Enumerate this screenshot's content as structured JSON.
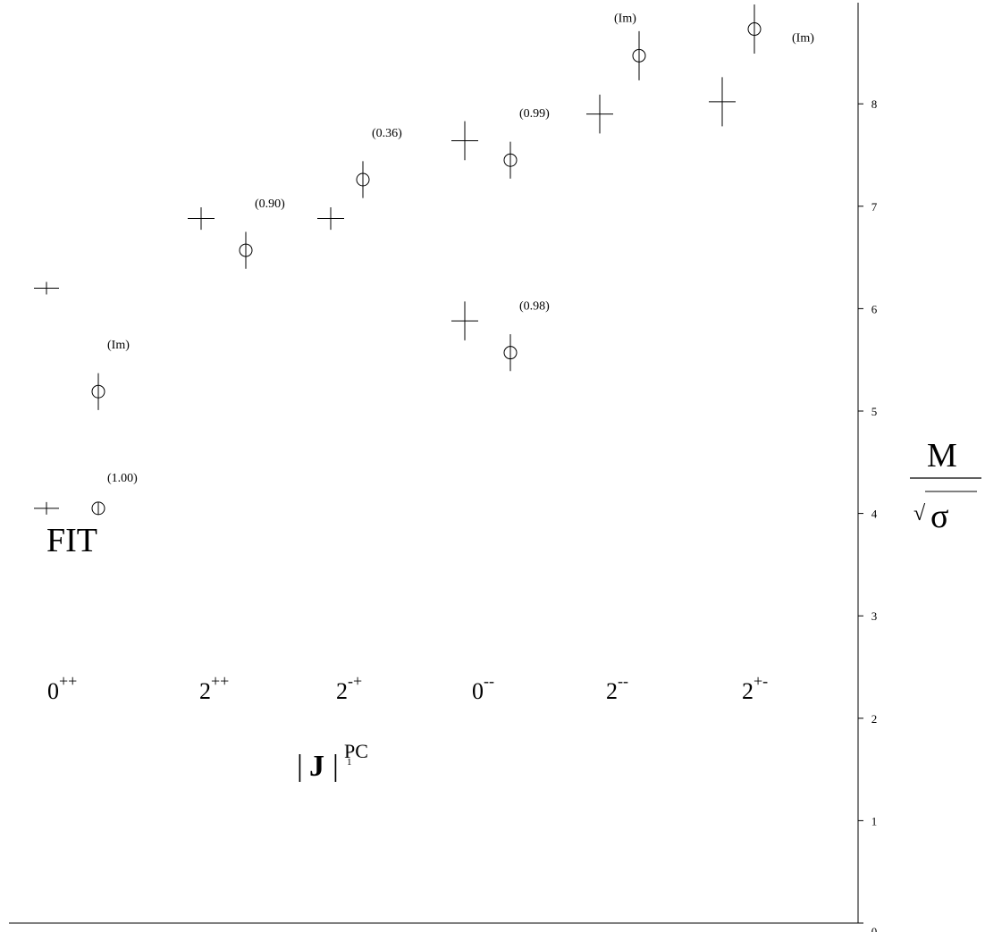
{
  "chart_data": {
    "type": "scatter",
    "title": "",
    "fit_label": "FIT",
    "xlabel": {
      "prefix": "|",
      "main": "J",
      "mid": "|",
      "sup": "PC",
      "sub": "1"
    },
    "ylabel": {
      "numerator": "M",
      "radical": "√",
      "denominator": "σ"
    },
    "ylim": [
      0,
      9
    ],
    "yticks": [
      0,
      1,
      2,
      3,
      4,
      5,
      6,
      7,
      8
    ],
    "grid": false,
    "categories": [
      {
        "base": "0",
        "sup": "++"
      },
      {
        "base": "2",
        "sup": "++"
      },
      {
        "base": "2",
        "sup": "-+"
      },
      {
        "base": "0",
        "sup": "--"
      },
      {
        "base": "2",
        "sup": "--"
      },
      {
        "base": "2",
        "sup": "+-"
      }
    ],
    "series": [
      {
        "marker": "cross",
        "points": [
          {
            "category": 0,
            "y": 4.05,
            "err": 0.02
          },
          {
            "category": 0,
            "y": 6.2,
            "err": 0.04
          },
          {
            "category": 1,
            "y": 6.88,
            "err": 0.11
          },
          {
            "category": 2,
            "y": 6.88,
            "err": 0.11
          },
          {
            "category": 3,
            "y": 5.88,
            "err": 0.19
          },
          {
            "category": 3,
            "y": 7.64,
            "err": 0.19
          },
          {
            "category": 4,
            "y": 7.9,
            "err": 0.19
          },
          {
            "category": 5,
            "y": 8.02,
            "err": 0.24
          }
        ]
      },
      {
        "marker": "circle",
        "points": [
          {
            "category": 0,
            "y": 4.05,
            "err": 0.06,
            "label": "(1.00)"
          },
          {
            "category": 0,
            "y": 5.19,
            "err": 0.18,
            "label": "(Im)"
          },
          {
            "category": 1,
            "y": 6.57,
            "err": 0.18,
            "label": "(0.90)"
          },
          {
            "category": 2,
            "y": 7.26,
            "err": 0.18,
            "label": "(0.36)"
          },
          {
            "category": 3,
            "y": 5.57,
            "err": 0.18,
            "label": "(0.98)"
          },
          {
            "category": 3,
            "y": 7.45,
            "err": 0.18,
            "label": "(0.99)"
          },
          {
            "category": 4,
            "y": 8.47,
            "err": 0.24,
            "label": "(Im)"
          },
          {
            "category": 5,
            "y": 8.73,
            "err": 0.24,
            "label": "(Im)"
          }
        ]
      }
    ]
  }
}
